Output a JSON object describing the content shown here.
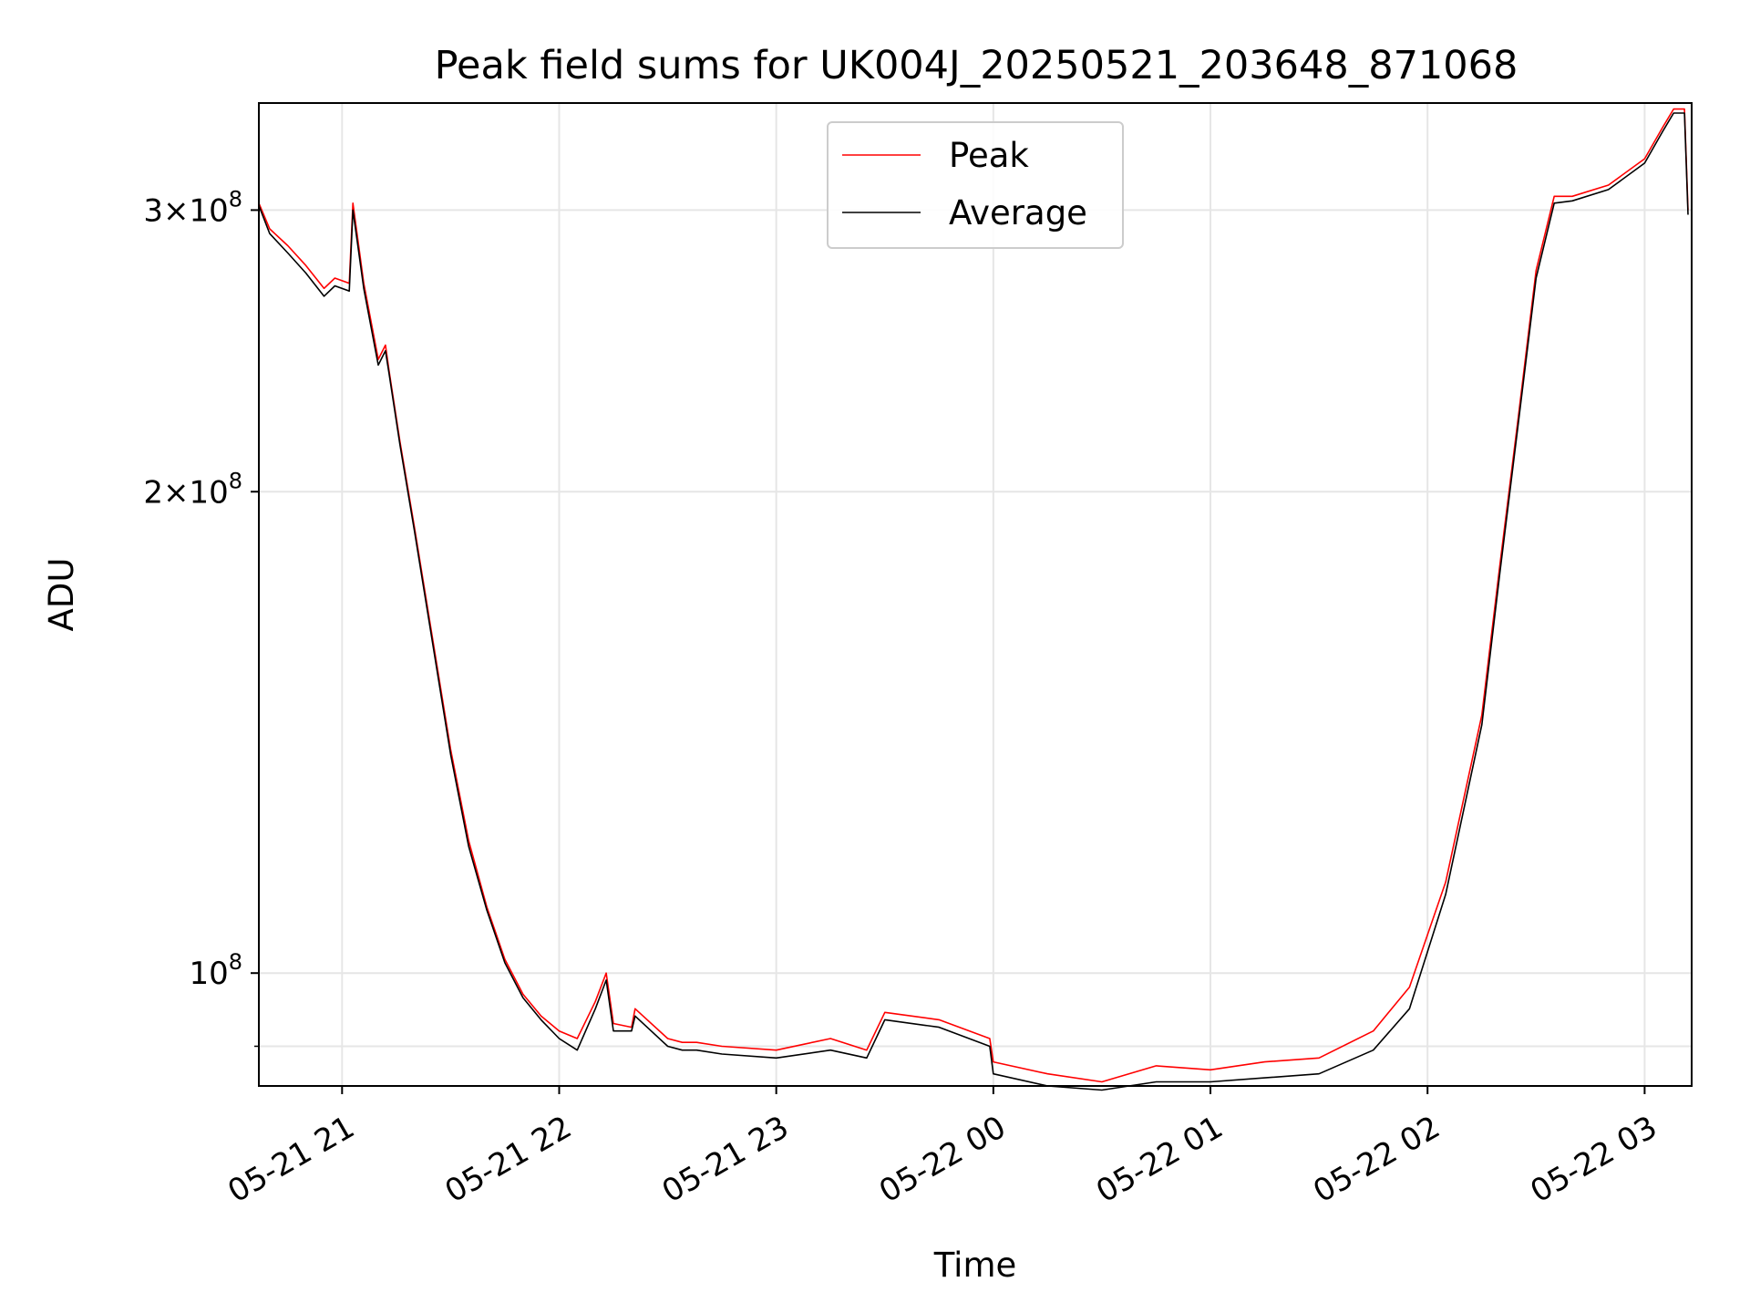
{
  "chart_data": {
    "type": "line",
    "title": "Peak field sums for UK004J_20250521_203648_871068",
    "xlabel": "Time",
    "ylabel": "ADU",
    "yscale": "log",
    "grid": true,
    "legend_position": "top-center",
    "x_ticks": [
      "05-21 21",
      "05-21 22",
      "05-21 23",
      "05-22 00",
      "05-22 01",
      "05-22 02",
      "05-22 03"
    ],
    "y_ticks": [
      {
        "value": 100000000,
        "mantissa": "",
        "exponent": "8"
      },
      {
        "value": 200000000,
        "mantissa": "2",
        "exponent": "8"
      },
      {
        "value": 300000000,
        "mantissa": "3",
        "exponent": "8"
      }
    ],
    "xlim": [
      "2025-05-21 20:37",
      "2025-05-22 03:13"
    ],
    "ylim": [
      85000000,
      350000000
    ],
    "series": [
      {
        "name": "Peak",
        "color": "#ff0000",
        "x": [
          "2025-05-21 20:37",
          "2025-05-21 20:40",
          "2025-05-21 20:45",
          "2025-05-21 20:50",
          "2025-05-21 20:55",
          "2025-05-21 20:58",
          "2025-05-21 21:02",
          "2025-05-21 21:03",
          "2025-05-21 21:06",
          "2025-05-21 21:10",
          "2025-05-21 21:12",
          "2025-05-21 21:13",
          "2025-05-21 21:16",
          "2025-05-21 21:20",
          "2025-05-21 21:25",
          "2025-05-21 21:30",
          "2025-05-21 21:35",
          "2025-05-21 21:40",
          "2025-05-21 21:45",
          "2025-05-21 21:50",
          "2025-05-21 21:55",
          "2025-05-21 22:00",
          "2025-05-21 22:05",
          "2025-05-21 22:10",
          "2025-05-21 22:13",
          "2025-05-21 22:15",
          "2025-05-21 22:20",
          "2025-05-21 22:21",
          "2025-05-21 22:30",
          "2025-05-21 22:34",
          "2025-05-21 22:38",
          "2025-05-21 22:45",
          "2025-05-21 23:00",
          "2025-05-21 23:15",
          "2025-05-21 23:25",
          "2025-05-21 23:30",
          "2025-05-21 23:45",
          "2025-05-21 23:59",
          "2025-05-22 00:00",
          "2025-05-22 00:15",
          "2025-05-22 00:30",
          "2025-05-22 00:45",
          "2025-05-22 01:00",
          "2025-05-22 01:15",
          "2025-05-22 01:30",
          "2025-05-22 01:45",
          "2025-05-22 01:55",
          "2025-05-22 02:05",
          "2025-05-22 02:15",
          "2025-05-22 02:20",
          "2025-05-22 02:25",
          "2025-05-22 02:30",
          "2025-05-22 02:35",
          "2025-05-22 02:40",
          "2025-05-22 02:50",
          "2025-05-22 03:00",
          "2025-05-22 03:05",
          "2025-05-22 03:08",
          "2025-05-22 03:11",
          "2025-05-22 03:12"
        ],
        "y": [
          303000000,
          292000000,
          285000000,
          277000000,
          268000000,
          272000000,
          270000000,
          303000000,
          270000000,
          242000000,
          247000000,
          238000000,
          215000000,
          190000000,
          162000000,
          138000000,
          121000000,
          110000000,
          102000000,
          97000000,
          94000000,
          92000000,
          91000000,
          96000000,
          100000000,
          93000000,
          92500000,
          95000000,
          91000000,
          90500000,
          90500000,
          90000000,
          89500000,
          91000000,
          89500000,
          94500000,
          93500000,
          91000000,
          88000000,
          86500000,
          85500000,
          87500000,
          87000000,
          88000000,
          88500000,
          92000000,
          98000000,
          114000000,
          145000000,
          180000000,
          222000000,
          275000000,
          306000000,
          306000000,
          311000000,
          323000000,
          338000000,
          347000000,
          347000000,
          300000000
        ]
      },
      {
        "name": "Average",
        "color": "#000000",
        "x": [
          "2025-05-21 20:37",
          "2025-05-21 20:40",
          "2025-05-21 20:45",
          "2025-05-21 20:50",
          "2025-05-21 20:55",
          "2025-05-21 20:58",
          "2025-05-21 21:02",
          "2025-05-21 21:03",
          "2025-05-21 21:06",
          "2025-05-21 21:10",
          "2025-05-21 21:12",
          "2025-05-21 21:13",
          "2025-05-21 21:16",
          "2025-05-21 21:20",
          "2025-05-21 21:25",
          "2025-05-21 21:30",
          "2025-05-21 21:35",
          "2025-05-21 21:40",
          "2025-05-21 21:45",
          "2025-05-21 21:50",
          "2025-05-21 21:55",
          "2025-05-21 22:00",
          "2025-05-21 22:05",
          "2025-05-21 22:10",
          "2025-05-21 22:13",
          "2025-05-21 22:15",
          "2025-05-21 22:20",
          "2025-05-21 22:21",
          "2025-05-21 22:30",
          "2025-05-21 22:34",
          "2025-05-21 22:38",
          "2025-05-21 22:45",
          "2025-05-21 23:00",
          "2025-05-21 23:15",
          "2025-05-21 23:25",
          "2025-05-21 23:30",
          "2025-05-21 23:45",
          "2025-05-21 23:59",
          "2025-05-22 00:00",
          "2025-05-22 00:15",
          "2025-05-22 00:30",
          "2025-05-22 00:45",
          "2025-05-22 01:00",
          "2025-05-22 01:15",
          "2025-05-22 01:30",
          "2025-05-22 01:45",
          "2025-05-22 01:55",
          "2025-05-22 02:05",
          "2025-05-22 02:15",
          "2025-05-22 02:20",
          "2025-05-22 02:25",
          "2025-05-22 02:30",
          "2025-05-22 02:35",
          "2025-05-22 02:40",
          "2025-05-22 02:50",
          "2025-05-22 03:00",
          "2025-05-22 03:05",
          "2025-05-22 03:08",
          "2025-05-22 03:11",
          "2025-05-22 03:12"
        ],
        "y": [
          302000000,
          290000000,
          282000000,
          274000000,
          265000000,
          269000000,
          267000000,
          300000000,
          268000000,
          240000000,
          245000000,
          237000000,
          214000000,
          189000000,
          161000000,
          137000000,
          120000000,
          109500000,
          101500000,
          96500000,
          93500000,
          91000000,
          89500000,
          95000000,
          99000000,
          92000000,
          92000000,
          94000000,
          90000000,
          89500000,
          89500000,
          89000000,
          88500000,
          89500000,
          88500000,
          93500000,
          92500000,
          90000000,
          86500000,
          85000000,
          84500000,
          85500000,
          85500000,
          86000000,
          86500000,
          89500000,
          95000000,
          112000000,
          143000000,
          178000000,
          220000000,
          272000000,
          303000000,
          304000000,
          309000000,
          321000000,
          336000000,
          345000000,
          345000000,
          298000000
        ]
      }
    ]
  }
}
